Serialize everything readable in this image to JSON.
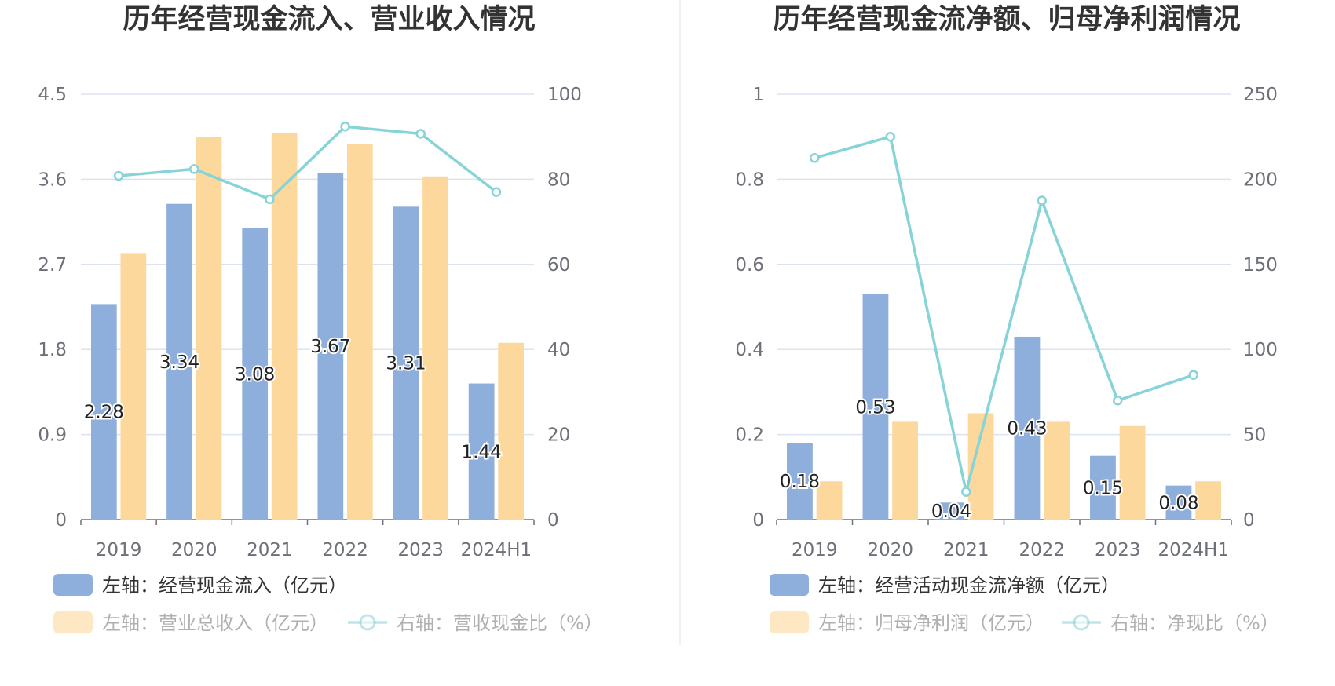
{
  "colors": {
    "blue": "#8eaedb",
    "orange": "#fdd89c",
    "teal": "#86d3d8",
    "grid": "#dde3ee",
    "axis": "#6e7079"
  },
  "chart_data": [
    {
      "type": "bar",
      "title": "历年经营现金流入、营业收入情况",
      "categories": [
        "2019",
        "2020",
        "2021",
        "2022",
        "2023",
        "2024H1"
      ],
      "left_axis": {
        "ticks": [
          "0",
          "0.9",
          "1.8",
          "2.7",
          "3.6",
          "4.5"
        ],
        "ylim": [
          0,
          4.5
        ]
      },
      "right_axis": {
        "ticks": [
          "0",
          "20",
          "40",
          "60",
          "80",
          "100"
        ],
        "ylim": [
          0,
          100
        ]
      },
      "series": [
        {
          "name": "左轴：经营现金流入（亿元）",
          "type": "bar",
          "axis": "left",
          "color": "#8eaedb",
          "values": [
            2.28,
            3.34,
            3.08,
            3.67,
            3.31,
            1.44
          ],
          "labels": [
            "2.28",
            "3.34",
            "3.08",
            "3.67",
            "3.31",
            "1.44"
          ]
        },
        {
          "name": "左轴：营业总收入（亿元）",
          "type": "bar",
          "axis": "left",
          "color": "#fdd89c",
          "values": [
            2.82,
            4.05,
            4.09,
            3.97,
            3.63,
            1.87
          ]
        },
        {
          "name": "右轴：营收现金比（%）",
          "type": "line",
          "axis": "right",
          "color": "#86d3d8",
          "values": [
            80.8,
            82.4,
            75.3,
            92.4,
            90.7,
            77.0
          ]
        }
      ],
      "legend": [
        {
          "label": "左轴：经营现金流入（亿元）",
          "kind": "bar",
          "color": "#8eaedb",
          "faded": false
        },
        {
          "label": "左轴：营业总收入（亿元）",
          "kind": "bar",
          "color": "#fdd89c",
          "faded": true
        },
        {
          "label": "右轴：营收现金比（%）",
          "kind": "line",
          "color": "#86d3d8",
          "faded": true
        }
      ]
    },
    {
      "type": "bar",
      "title": "历年经营现金流净额、归母净利润情况",
      "categories": [
        "2019",
        "2020",
        "2021",
        "2022",
        "2023",
        "2024H1"
      ],
      "left_axis": {
        "ticks": [
          "0",
          "0.2",
          "0.4",
          "0.6",
          "0.8",
          "1"
        ],
        "ylim": [
          0,
          1
        ]
      },
      "right_axis": {
        "ticks": [
          "0",
          "50",
          "100",
          "150",
          "200",
          "250"
        ],
        "ylim": [
          0,
          250
        ]
      },
      "series": [
        {
          "name": "左轴：经营活动现金流净额（亿元）",
          "type": "bar",
          "axis": "left",
          "color": "#8eaedb",
          "values": [
            0.18,
            0.53,
            0.04,
            0.43,
            0.15,
            0.08
          ],
          "labels": [
            "0.18",
            "0.53",
            "0.04",
            "0.43",
            "0.15",
            "0.08"
          ]
        },
        {
          "name": "左轴：归母净利润（亿元）",
          "type": "bar",
          "axis": "left",
          "color": "#fdd89c",
          "values": [
            0.09,
            0.23,
            0.25,
            0.23,
            0.22,
            0.09
          ]
        },
        {
          "name": "右轴：净现比（%）",
          "type": "line",
          "axis": "right",
          "color": "#86d3d8",
          "values": [
            212.5,
            225.0,
            16.3,
            187.5,
            70.0,
            85.0
          ]
        }
      ],
      "legend": [
        {
          "label": "左轴：经营活动现金流净额（亿元）",
          "kind": "bar",
          "color": "#8eaedb",
          "faded": false
        },
        {
          "label": "左轴：归母净利润（亿元）",
          "kind": "bar",
          "color": "#fdd89c",
          "faded": true
        },
        {
          "label": "右轴：净现比（%）",
          "kind": "line",
          "color": "#86d3d8",
          "faded": true
        }
      ]
    }
  ]
}
